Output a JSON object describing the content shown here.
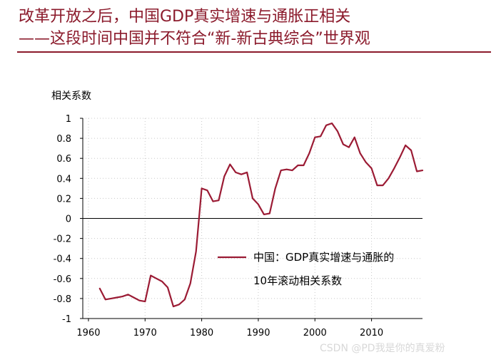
{
  "header": {
    "title_line1": "改革开放之后，中国GDP真实增速与通胀正相关",
    "title_line2": "——这段时间中国并不符合“新-新古典综合”世界观"
  },
  "watermark": "CSDN @PD我是你的真爱粉",
  "colors": {
    "title": "#8b1a2b",
    "series": "#9b1b34",
    "grid": "#c8c8c8"
  },
  "chart_data": {
    "type": "line",
    "title": "",
    "xlabel": "",
    "ylabel": "相关系数",
    "xlim": [
      1959,
      2019
    ],
    "ylim": [
      -1,
      1
    ],
    "xticks": [
      1960,
      1970,
      1980,
      1990,
      2000,
      2010
    ],
    "xtick_labels": [
      "1960",
      "1970",
      "1980",
      "1990",
      "2000",
      "2010"
    ],
    "yticks": [
      1,
      0.8,
      0.6,
      0.4,
      0.2,
      0,
      -0.2,
      -0.4,
      -0.6,
      -0.8,
      -1
    ],
    "ytick_labels": [
      "1",
      "0.8",
      "0.6",
      "0.4",
      "0.2",
      "0",
      "-0.2",
      "-0.4",
      "-0.6",
      "-0.8",
      "-1"
    ],
    "grid": true,
    "legend_position": "center-right",
    "series": [
      {
        "name": "中国：GDP真实增速与通胀的10年滚动相关系数",
        "legend_lines": [
          "中国：GDP真实增速与通胀的",
          "10年滚动相关系数"
        ],
        "x": [
          1962,
          1963,
          1964,
          1965,
          1966,
          1967,
          1968,
          1969,
          1970,
          1971,
          1972,
          1973,
          1974,
          1975,
          1976,
          1977,
          1978,
          1979,
          1980,
          1981,
          1982,
          1983,
          1984,
          1985,
          1986,
          1987,
          1988,
          1989,
          1990,
          1991,
          1992,
          1993,
          1994,
          1995,
          1996,
          1997,
          1998,
          1999,
          2000,
          2001,
          2002,
          2003,
          2004,
          2005,
          2006,
          2007,
          2008,
          2009,
          2010,
          2011,
          2012,
          2013,
          2014,
          2015,
          2016,
          2017,
          2018,
          2019
        ],
        "y": [
          -0.7,
          -0.81,
          -0.8,
          -0.79,
          -0.78,
          -0.76,
          -0.79,
          -0.82,
          -0.83,
          -0.57,
          -0.6,
          -0.63,
          -0.69,
          -0.88,
          -0.86,
          -0.81,
          -0.65,
          -0.33,
          0.3,
          0.28,
          0.17,
          0.18,
          0.42,
          0.54,
          0.46,
          0.44,
          0.46,
          0.2,
          0.14,
          0.04,
          0.05,
          0.3,
          0.48,
          0.49,
          0.48,
          0.53,
          0.53,
          0.65,
          0.81,
          0.82,
          0.93,
          0.95,
          0.87,
          0.74,
          0.71,
          0.81,
          0.65,
          0.56,
          0.5,
          0.33,
          0.33,
          0.4,
          0.5,
          0.61,
          0.73,
          0.68,
          0.47,
          0.48
        ]
      }
    ]
  }
}
